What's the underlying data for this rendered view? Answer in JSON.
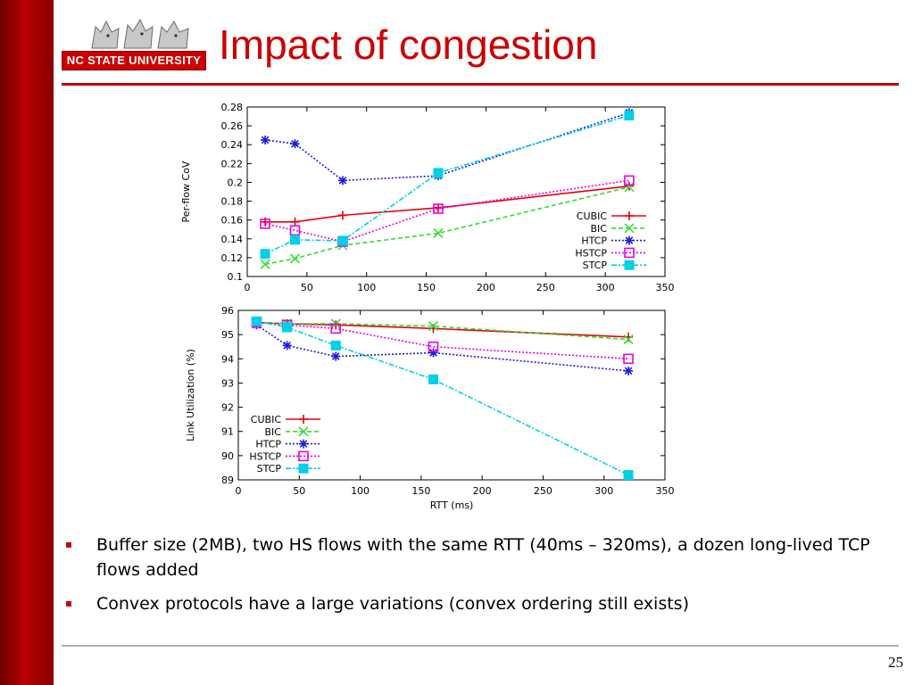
{
  "slide": {
    "title": "Impact of congestion",
    "logo_text": "NC STATE UNIVERSITY",
    "page_number": "25",
    "bullets": [
      "Buffer size (2MB), two HS flows with the same RTT (40ms – 320ms), a dozen long-lived TCP flows added",
      "Convex protocols have a large variations (convex ordering still exists)"
    ]
  },
  "chart_data": [
    {
      "type": "line",
      "ylabel": "Per-flow CoV",
      "xlabel": "",
      "xlim": [
        0,
        350
      ],
      "ylim": [
        0.1,
        0.28
      ],
      "x_ticks": [
        "0",
        "50",
        "100",
        "150",
        "200",
        "250",
        "300",
        "350"
      ],
      "y_ticks": [
        "0.1",
        "0.12",
        "0.14",
        "0.16",
        "0.18",
        "0.2",
        "0.22",
        "0.24",
        "0.26",
        "0.28"
      ],
      "legend_position": "right",
      "series": [
        {
          "name": "CUBIC",
          "color": "#e8000b",
          "marker": "plus",
          "points": [
            [
              15,
              0.158
            ],
            [
              40,
              0.158
            ],
            [
              80,
              0.165
            ],
            [
              160,
              0.173
            ],
            [
              320,
              0.196
            ]
          ]
        },
        {
          "name": "BIC",
          "color": "#33dd33",
          "marker": "x",
          "points": [
            [
              15,
              0.113
            ],
            [
              40,
              0.119
            ],
            [
              80,
              0.133
            ],
            [
              160,
              0.146
            ],
            [
              320,
              0.195
            ]
          ]
        },
        {
          "name": "HTCP",
          "color": "#1a1ae6",
          "marker": "star",
          "points": [
            [
              15,
              0.245
            ],
            [
              40,
              0.241
            ],
            [
              80,
              0.202
            ],
            [
              160,
              0.207
            ],
            [
              320,
              0.274
            ]
          ]
        },
        {
          "name": "HSTCP",
          "color": "#e600e6",
          "marker": "square-open",
          "points": [
            [
              15,
              0.156
            ],
            [
              40,
              0.149
            ],
            [
              80,
              0.137
            ],
            [
              160,
              0.172
            ],
            [
              320,
              0.202
            ]
          ]
        },
        {
          "name": "STCP",
          "color": "#00d0e6",
          "marker": "square-filled",
          "points": [
            [
              15,
              0.124
            ],
            [
              40,
              0.139
            ],
            [
              80,
              0.138
            ],
            [
              160,
              0.21
            ],
            [
              320,
              0.271
            ]
          ]
        }
      ]
    },
    {
      "type": "line",
      "ylabel": "Link Utilization (%)",
      "xlabel": "RTT (ms)",
      "xlim": [
        0,
        350
      ],
      "ylim": [
        89,
        96
      ],
      "x_ticks": [
        "0",
        "50",
        "100",
        "150",
        "200",
        "250",
        "300",
        "350"
      ],
      "y_ticks": [
        "89",
        "90",
        "91",
        "92",
        "93",
        "94",
        "95",
        "96"
      ],
      "legend_position": "bottom-left",
      "series": [
        {
          "name": "CUBIC",
          "color": "#e8000b",
          "marker": "plus",
          "points": [
            [
              15,
              95.5
            ],
            [
              40,
              95.45
            ],
            [
              80,
              95.4
            ],
            [
              160,
              95.25
            ],
            [
              320,
              94.9
            ]
          ]
        },
        {
          "name": "BIC",
          "color": "#33dd33",
          "marker": "x",
          "points": [
            [
              15,
              95.5
            ],
            [
              40,
              95.45
            ],
            [
              80,
              95.45
            ],
            [
              160,
              95.35
            ],
            [
              320,
              94.8
            ]
          ]
        },
        {
          "name": "HTCP",
          "color": "#1a1ae6",
          "marker": "star",
          "points": [
            [
              15,
              95.4
            ],
            [
              40,
              94.55
            ],
            [
              80,
              94.1
            ],
            [
              160,
              94.25
            ],
            [
              320,
              93.5
            ]
          ]
        },
        {
          "name": "HSTCP",
          "color": "#e600e6",
          "marker": "square-open",
          "points": [
            [
              15,
              95.5
            ],
            [
              40,
              95.4
            ],
            [
              80,
              95.25
            ],
            [
              160,
              94.5
            ],
            [
              320,
              94.0
            ]
          ]
        },
        {
          "name": "STCP",
          "color": "#00d0e6",
          "marker": "square-filled",
          "points": [
            [
              15,
              95.55
            ],
            [
              40,
              95.3
            ],
            [
              80,
              94.55
            ],
            [
              160,
              93.15
            ],
            [
              320,
              89.2
            ]
          ]
        }
      ]
    }
  ]
}
